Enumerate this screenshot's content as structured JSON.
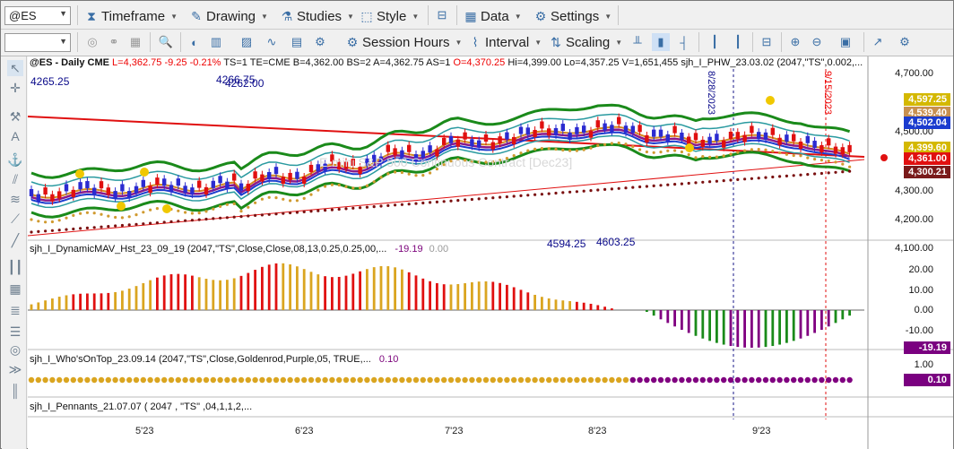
{
  "toolbar": {
    "symbol": "@ES",
    "menus": [
      {
        "label": "Timeframe",
        "icon": "hourglass-icon"
      },
      {
        "label": "Drawing",
        "icon": "pencil-icon"
      },
      {
        "label": "Studies",
        "icon": "flask-icon"
      },
      {
        "label": "Style",
        "icon": "style-icon"
      },
      {
        "label": "Data",
        "icon": "data-grid-icon"
      },
      {
        "label": "Settings",
        "icon": "gear-icon"
      }
    ]
  },
  "toolbar2": {
    "session_hours": "Session Hours",
    "interval": "Interval",
    "scaling": "Scaling"
  },
  "chart": {
    "header": "@ES - Daily  CME",
    "last": "L=4,362.75",
    "change": "-9.25",
    "pct": "-0.21%",
    "ts": "TS=1",
    "te": "TE=CME",
    "bid": "B=4,362.00",
    "bs": "BS=2",
    "ask": "A=4,362.75",
    "as": "AS=1",
    "open": "O=4,370.25",
    "high": "Hi=4,399.00",
    "low": "Lo=4,357.25",
    "vol": "V=1,651,455",
    "study1": "sjh_I_PHW_23.03.02 (2047,\"TS\",0.002,...",
    "watermark": "E-mini S&P 500 Continuous Contract [Dec23]",
    "float_labels": [
      "4265.25",
      "4266.75",
      "4262.00",
      "4594.25",
      "4603.25",
      "8/28/2023",
      "9/15/2023"
    ],
    "price_axis": [
      "4,700.00",
      "4,600.00",
      "4,500.00",
      "4,400.00",
      "4,300.00",
      "4,200.00",
      "4,100.00"
    ],
    "price_tags": [
      {
        "text": "4,597.25",
        "color": "#d4b800"
      },
      {
        "text": "4,539.40",
        "color": "#c89050"
      },
      {
        "text": "4,502.04",
        "color": "#1b3ccf"
      },
      {
        "text": "4,399.60",
        "color": "#d4b800"
      },
      {
        "text": "4,361.00",
        "color": "#e01010"
      },
      {
        "text": "4,300.21",
        "color": "#7a1a1a"
      }
    ]
  },
  "panel2": {
    "title": "sjh_I_DynamicMAV_Hst_23_09_19 (2047,\"TS\",Close,Close,08,13,0.25,0.25,00,...",
    "v1": "-19.19",
    "v2": "0.00",
    "axis": [
      "20.00",
      "10.00",
      "0.00",
      "-10.00"
    ],
    "tag": "-19.19"
  },
  "panel3": {
    "title": "sjh_I_Who'sOnTop_23.09.14 (2047,\"TS\",Close,Goldenrod,Purple,05,  TRUE,...",
    "v1": "0.10",
    "axis": [
      "1.00",
      "0.10"
    ],
    "tag": "0.10"
  },
  "panel4": {
    "title": "sjh_I_Pennants_21.07.07 (  2047 ,  \"TS\" ,04,1,1,2,..."
  },
  "x_axis": [
    "5'23",
    "6'23",
    "7'23",
    "8'23",
    "9'23"
  ],
  "colors": {
    "accent": "#3a6ea5",
    "up": "#2b2bd0",
    "down": "#e01010",
    "goldenrod": "#daa520",
    "purple": "#800080",
    "band": "#1a8a1a"
  }
}
